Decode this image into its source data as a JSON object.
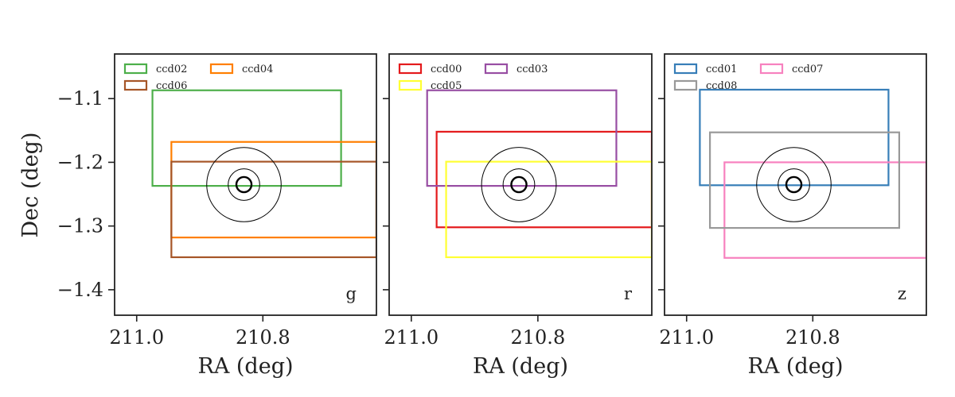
{
  "chart_data": [
    {
      "type": "line",
      "panel_label": "g",
      "xlabel": "RA (deg)",
      "ylabel": "Dec (deg)",
      "xlim": [
        211.035,
        210.62
      ],
      "ylim": [
        -1.44,
        -1.03
      ],
      "xticks": [
        211.0,
        210.8
      ],
      "xtick_labels": [
        "211.0",
        "210.8"
      ],
      "yticks": [
        -1.1,
        -1.2,
        -1.3,
        -1.4
      ],
      "ytick_labels": [
        "−1.1",
        "−1.2",
        "−1.3",
        "−1.4"
      ],
      "legend_position": "top-left",
      "series": [
        {
          "name": "ccd02",
          "color": "#4daf4a",
          "ra": [
            210.975,
            210.676
          ],
          "dec": [
            -1.237,
            -1.087
          ]
        },
        {
          "name": "ccd04",
          "color": "#ff7f00",
          "ra": [
            210.945,
            210.62
          ],
          "dec": [
            -1.318,
            -1.168
          ]
        },
        {
          "name": "ccd06",
          "color": "#a65628",
          "ra": [
            210.945,
            210.62
          ],
          "dec": [
            -1.349,
            -1.199
          ]
        }
      ],
      "target": {
        "ra": 210.83,
        "dec": -1.235,
        "radii_deg": [
          0.012,
          0.025,
          0.059
        ]
      }
    },
    {
      "type": "line",
      "panel_label": "r",
      "xlabel": "RA (deg)",
      "ylabel": "",
      "xlim": [
        211.035,
        210.62
      ],
      "ylim": [
        -1.44,
        -1.03
      ],
      "xticks": [
        211.0,
        210.8
      ],
      "xtick_labels": [
        "211.0",
        "210.8"
      ],
      "yticks": [
        -1.1,
        -1.2,
        -1.3,
        -1.4
      ],
      "ytick_labels": [
        "",
        "",
        "",
        ""
      ],
      "legend_position": "top-left",
      "series": [
        {
          "name": "ccd00",
          "color": "#e41a1c",
          "ra": [
            210.96,
            210.62
          ],
          "dec": [
            -1.302,
            -1.152
          ]
        },
        {
          "name": "ccd03",
          "color": "#984ea3",
          "ra": [
            210.975,
            210.676
          ],
          "dec": [
            -1.237,
            -1.087
          ]
        },
        {
          "name": "ccd05",
          "color": "#ffff33",
          "ra": [
            210.945,
            210.62
          ],
          "dec": [
            -1.349,
            -1.199
          ]
        }
      ],
      "target": {
        "ra": 210.83,
        "dec": -1.235,
        "radii_deg": [
          0.012,
          0.025,
          0.059
        ]
      }
    },
    {
      "type": "line",
      "panel_label": "z",
      "xlabel": "RA (deg)",
      "ylabel": "",
      "xlim": [
        211.035,
        210.62
      ],
      "ylim": [
        -1.44,
        -1.03
      ],
      "xticks": [
        211.0,
        210.8
      ],
      "xtick_labels": [
        "211.0",
        "210.8"
      ],
      "yticks": [
        -1.1,
        -1.2,
        -1.3,
        -1.4
      ],
      "ytick_labels": [
        "",
        "",
        "",
        ""
      ],
      "legend_position": "top-left",
      "series": [
        {
          "name": "ccd01",
          "color": "#377eb8",
          "ra": [
            210.979,
            210.68
          ],
          "dec": [
            -1.236,
            -1.086
          ]
        },
        {
          "name": "ccd07",
          "color": "#f781bf",
          "ra": [
            210.94,
            210.62
          ],
          "dec": [
            -1.35,
            -1.2
          ]
        },
        {
          "name": "ccd08",
          "color": "#999999",
          "ra": [
            210.963,
            210.663
          ],
          "dec": [
            -1.303,
            -1.153
          ]
        }
      ],
      "target": {
        "ra": 210.83,
        "dec": -1.235,
        "radii_deg": [
          0.012,
          0.025,
          0.059
        ]
      }
    }
  ]
}
